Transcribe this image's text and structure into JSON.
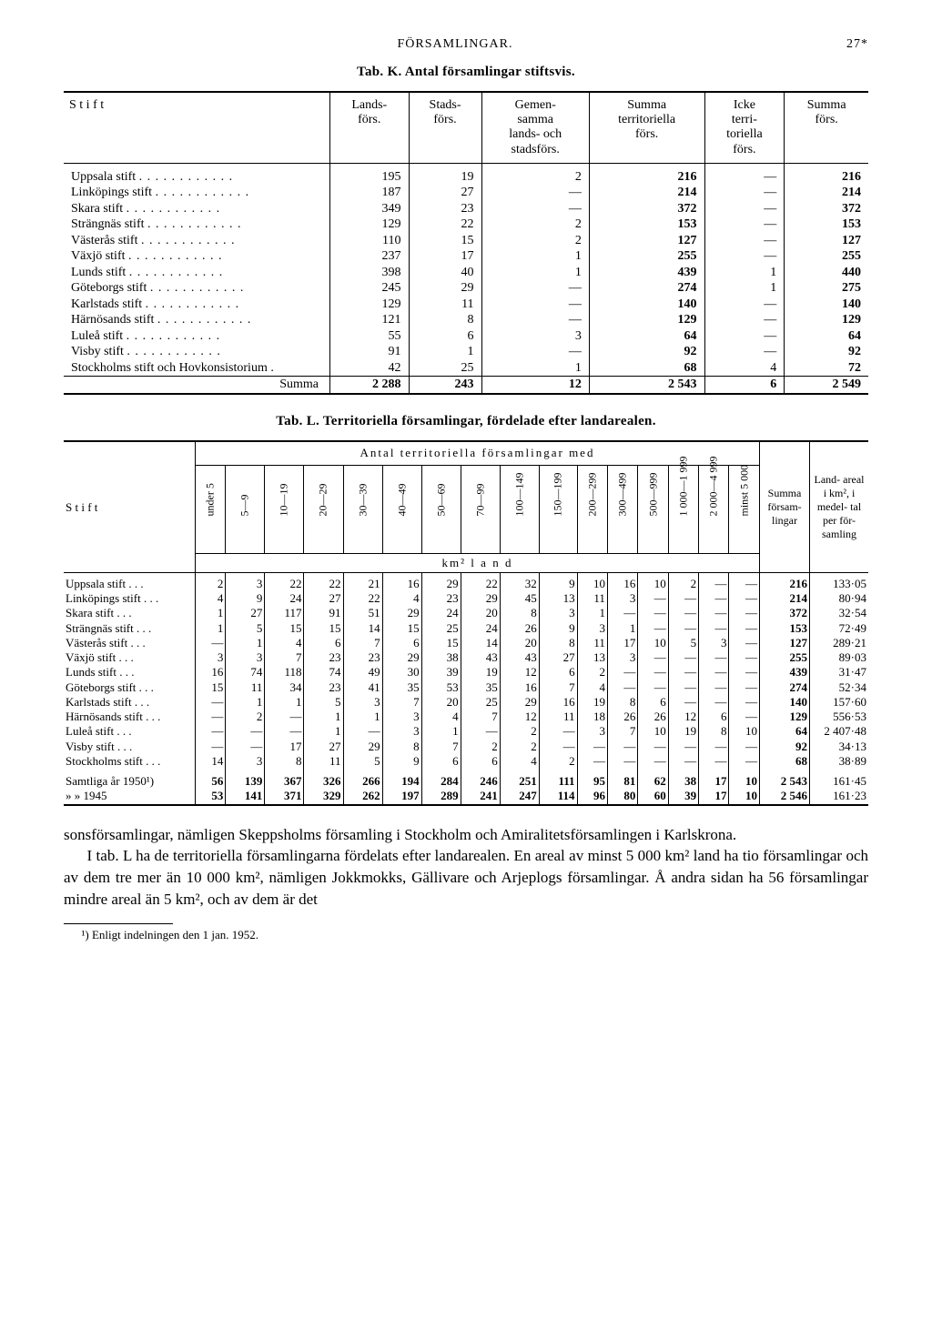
{
  "header": {
    "left": "FÖRSAMLINGAR.",
    "right": "27*"
  },
  "tabK": {
    "caption": "Tab. K.  Antal församlingar stiftsvis.",
    "columns": [
      "S t i f t",
      "Lands-\nförs.",
      "Stads-\nförs.",
      "Gemen-\nsamma\nlands- och\nstadsförs.",
      "Summa\nterritoriella\nförs.",
      "Icke\nterri-\ntoriella\nförs.",
      "Summa\nförs."
    ],
    "rows": [
      [
        "Uppsala stift",
        "195",
        "19",
        "2",
        "216",
        "—",
        "216"
      ],
      [
        "Linköpings stift",
        "187",
        "27",
        "—",
        "214",
        "—",
        "214"
      ],
      [
        "Skara stift",
        "349",
        "23",
        "—",
        "372",
        "—",
        "372"
      ],
      [
        "Strängnäs stift",
        "129",
        "22",
        "2",
        "153",
        "—",
        "153"
      ],
      [
        "Västerås stift",
        "110",
        "15",
        "2",
        "127",
        "—",
        "127"
      ],
      [
        "Växjö stift",
        "237",
        "17",
        "1",
        "255",
        "—",
        "255"
      ],
      [
        "Lunds stift",
        "398",
        "40",
        "1",
        "439",
        "1",
        "440"
      ],
      [
        "Göteborgs stift",
        "245",
        "29",
        "—",
        "274",
        "1",
        "275"
      ],
      [
        "Karlstads stift",
        "129",
        "11",
        "—",
        "140",
        "—",
        "140"
      ],
      [
        "Härnösands stift",
        "121",
        "8",
        "—",
        "129",
        "—",
        "129"
      ],
      [
        "Luleå stift",
        "55",
        "6",
        "3",
        "64",
        "—",
        "64"
      ],
      [
        "Visby stift",
        "91",
        "1",
        "—",
        "92",
        "—",
        "92"
      ],
      [
        "Stockholms stift och Hovkonsistorium .",
        "42",
        "25",
        "1",
        "68",
        "4",
        "72"
      ]
    ],
    "sum": [
      "Summa",
      "2 288",
      "243",
      "12",
      "2 543",
      "6",
      "2 549"
    ]
  },
  "tabL": {
    "caption": "Tab. L.  Territoriella församlingar, fördelade efter landarealen.",
    "spanHeader": "Antal  territoriella  församlingar  med",
    "unitLabel": "km² l a n d",
    "sizeHeaders": [
      "under 5",
      "5—9",
      "10—19",
      "20—29",
      "30—39",
      "40—49",
      "50—69",
      "70—99",
      "100—149",
      "150—199",
      "200—299",
      "300—499",
      "500—999",
      "1 000—1 999",
      "2 000—4 999",
      "minst 5 000"
    ],
    "rightHeaders": [
      "Summa försam- lingar",
      "Land- areal i km², i medel- tal per för- samling"
    ],
    "stiftHeader": "S t i f t",
    "rows": [
      [
        "Uppsala stift",
        "2",
        "3",
        "22",
        "22",
        "21",
        "16",
        "29",
        "22",
        "32",
        "9",
        "10",
        "16",
        "10",
        "2",
        "—",
        "—",
        "216",
        "133·05"
      ],
      [
        "Linköpings stift",
        "4",
        "9",
        "24",
        "27",
        "22",
        "4",
        "23",
        "29",
        "45",
        "13",
        "11",
        "3",
        "—",
        "—",
        "—",
        "—",
        "214",
        "80·94"
      ],
      [
        "Skara stift",
        "1",
        "27",
        "117",
        "91",
        "51",
        "29",
        "24",
        "20",
        "8",
        "3",
        "1",
        "—",
        "—",
        "—",
        "—",
        "—",
        "372",
        "32·54"
      ],
      [
        "Strängnäs stift",
        "1",
        "5",
        "15",
        "15",
        "14",
        "15",
        "25",
        "24",
        "26",
        "9",
        "3",
        "1",
        "—",
        "—",
        "—",
        "—",
        "153",
        "72·49"
      ],
      [
        "Västerås stift",
        "—",
        "1",
        "4",
        "6",
        "7",
        "6",
        "15",
        "14",
        "20",
        "8",
        "11",
        "17",
        "10",
        "5",
        "3",
        "—",
        "127",
        "289·21"
      ],
      [
        "Växjö stift",
        "3",
        "3",
        "7",
        "23",
        "23",
        "29",
        "38",
        "43",
        "43",
        "27",
        "13",
        "3",
        "—",
        "—",
        "—",
        "—",
        "255",
        "89·03"
      ],
      [
        "Lunds stift",
        "16",
        "74",
        "118",
        "74",
        "49",
        "30",
        "39",
        "19",
        "12",
        "6",
        "2",
        "—",
        "—",
        "—",
        "—",
        "—",
        "439",
        "31·47"
      ],
      [
        "Göteborgs stift",
        "15",
        "11",
        "34",
        "23",
        "41",
        "35",
        "53",
        "35",
        "16",
        "7",
        "4",
        "—",
        "—",
        "—",
        "—",
        "—",
        "274",
        "52·34"
      ],
      [
        "Karlstads stift",
        "—",
        "1",
        "1",
        "5",
        "3",
        "7",
        "20",
        "25",
        "29",
        "16",
        "19",
        "8",
        "6",
        "—",
        "—",
        "—",
        "140",
        "157·60"
      ],
      [
        "Härnösands stift",
        "—",
        "2",
        "—",
        "1",
        "1",
        "3",
        "4",
        "7",
        "12",
        "11",
        "18",
        "26",
        "26",
        "12",
        "6",
        "—",
        "129",
        "556·53"
      ],
      [
        "Luleå stift",
        "—",
        "—",
        "—",
        "1",
        "—",
        "3",
        "1",
        "—",
        "2",
        "—",
        "3",
        "7",
        "10",
        "19",
        "8",
        "10",
        "64",
        "2 407·48"
      ],
      [
        "Visby stift",
        "—",
        "—",
        "17",
        "27",
        "29",
        "8",
        "7",
        "2",
        "2",
        "—",
        "—",
        "—",
        "—",
        "—",
        "—",
        "—",
        "92",
        "34·13"
      ],
      [
        "Stockholms stift",
        "14",
        "3",
        "8",
        "11",
        "5",
        "9",
        "6",
        "6",
        "4",
        "2",
        "—",
        "—",
        "—",
        "—",
        "—",
        "—",
        "68",
        "38·89"
      ]
    ],
    "sums": [
      [
        "Samtliga år 1950¹)",
        "56",
        "139",
        "367",
        "326",
        "266",
        "194",
        "284",
        "246",
        "251",
        "111",
        "95",
        "81",
        "62",
        "38",
        "17",
        "10",
        "2 543",
        "161·45"
      ],
      [
        "»       »  1945",
        "53",
        "141",
        "371",
        "329",
        "262",
        "197",
        "289",
        "241",
        "247",
        "114",
        "96",
        "80",
        "60",
        "39",
        "17",
        "10",
        "2 546",
        "161·23"
      ]
    ]
  },
  "body": {
    "p1": "sonsförsamlingar, nämligen Skeppsholms församling i Stockholm och Amiralitetsförsamlingen i Karlskrona.",
    "p2": "I tab. L ha de territoriella församlingarna fördelats efter landarealen. En areal av minst 5 000 km² land ha tio församlingar och av dem tre mer än 10 000 km², nämligen Jokkmokks, Gällivare och Arjeplogs församlingar. Å andra sidan ha 56 församlingar mindre areal än 5 km², och av dem är det"
  },
  "footnote": "¹) Enligt indelningen den 1 jan. 1952."
}
